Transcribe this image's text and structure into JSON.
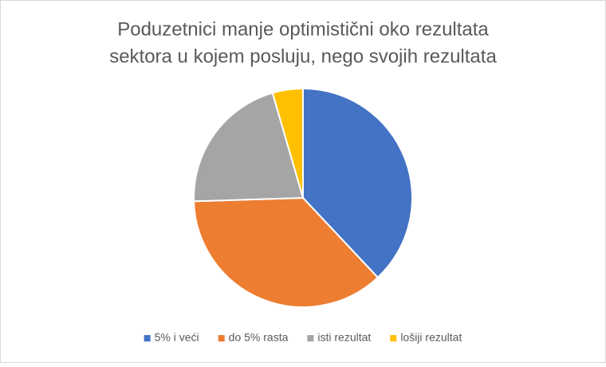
{
  "chart_data": {
    "type": "pie",
    "title": [
      "Poduzetnici manje optimistični oko rezultata",
      "sektora u kojem posluju, nego svojih rezultata"
    ],
    "categories": [
      "5% i veći",
      "do 5% rasta",
      "isti rezultat",
      "lošiji rezultat"
    ],
    "values": [
      38,
      36.5,
      21,
      4.5
    ],
    "colors": [
      "#4472c4",
      "#ed7d31",
      "#a5a5a5",
      "#ffc000"
    ],
    "legend": "bottom"
  }
}
